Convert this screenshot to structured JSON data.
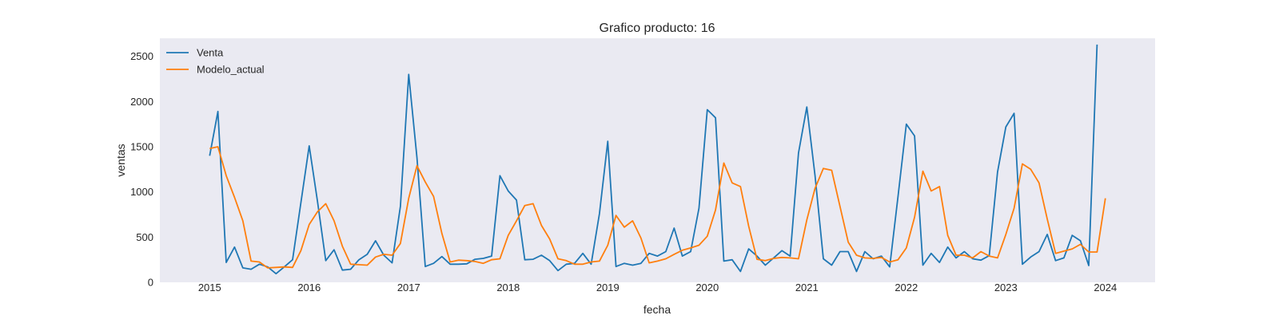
{
  "chart_data": {
    "type": "line",
    "title": "Grafico producto: 16",
    "xlabel": "fecha",
    "ylabel": "ventas",
    "x_start": "2015-01",
    "x_ticks": [
      "2015",
      "2016",
      "2017",
      "2018",
      "2019",
      "2020",
      "2021",
      "2022",
      "2023",
      "2024"
    ],
    "y_ticks": [
      0,
      500,
      1000,
      1500,
      2000,
      2500
    ],
    "xlim": [
      "2014-07",
      "2024-07"
    ],
    "ylim": [
      0,
      2700
    ],
    "grid": false,
    "legend_position": "top-left",
    "background_color": "#eaeaf2",
    "series": [
      {
        "name": "Venta",
        "color": "#1f77b4",
        "values": [
          1400,
          1890,
          220,
          390,
          160,
          145,
          200,
          170,
          95,
          170,
          250,
          880,
          1510,
          900,
          240,
          360,
          135,
          145,
          250,
          310,
          460,
          300,
          215,
          840,
          2300,
          1380,
          175,
          210,
          285,
          200,
          200,
          205,
          255,
          265,
          290,
          1180,
          1010,
          910,
          250,
          255,
          300,
          240,
          130,
          200,
          210,
          320,
          200,
          760,
          1560,
          175,
          210,
          190,
          210,
          320,
          290,
          340,
          600,
          290,
          340,
          820,
          1910,
          1820,
          235,
          250,
          120,
          370,
          290,
          190,
          270,
          350,
          290,
          1430,
          1940,
          1180,
          260,
          190,
          340,
          340,
          120,
          340,
          260,
          290,
          170,
          950,
          1750,
          1620,
          190,
          320,
          220,
          390,
          270,
          340,
          260,
          245,
          295,
          1220,
          1720,
          1870,
          200,
          280,
          340,
          530,
          240,
          270,
          520,
          460,
          185,
          2630
        ]
      },
      {
        "name": "Modelo_actual",
        "color": "#ff7f0e",
        "values": [
          1480,
          1500,
          1180,
          940,
          680,
          235,
          225,
          160,
          165,
          170,
          165,
          350,
          640,
          780,
          870,
          680,
          400,
          200,
          195,
          190,
          280,
          310,
          300,
          430,
          930,
          1290,
          1110,
          950,
          540,
          225,
          245,
          240,
          230,
          210,
          250,
          260,
          520,
          680,
          850,
          870,
          630,
          480,
          260,
          240,
          200,
          200,
          225,
          235,
          410,
          740,
          610,
          680,
          490,
          215,
          235,
          260,
          310,
          355,
          380,
          410,
          510,
          800,
          1320,
          1100,
          1060,
          620,
          255,
          240,
          265,
          275,
          270,
          260,
          690,
          1040,
          1260,
          1240,
          840,
          445,
          300,
          270,
          265,
          275,
          225,
          250,
          380,
          720,
          1230,
          1010,
          1060,
          520,
          300,
          300,
          270,
          340,
          290,
          270,
          530,
          820,
          1310,
          1250,
          1100,
          700,
          320,
          345,
          370,
          420,
          335,
          335,
          930
        ]
      }
    ]
  }
}
